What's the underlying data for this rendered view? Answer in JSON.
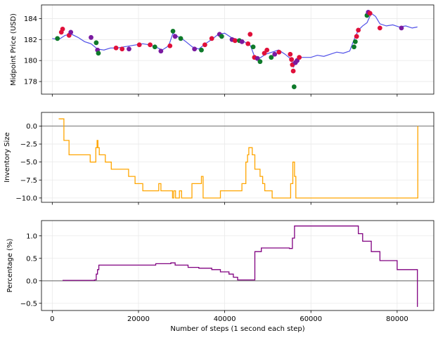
{
  "chart_data": [
    {
      "type": "line",
      "panel": "price",
      "xlabel": "",
      "ylabel": "Midpoint Price (USD)",
      "xlim": [
        -2500,
        88500
      ],
      "ylim": [
        176.8,
        185.3
      ],
      "xticks": [
        0,
        20000,
        40000,
        60000,
        80000
      ],
      "yticks": [
        178,
        180,
        182,
        184
      ],
      "ytick_labels": [
        "178",
        "180",
        "182",
        "184"
      ],
      "grid": true,
      "colors": {
        "line": "#5050e8",
        "buy": "#0e7a2a",
        "sell": "#e0103a",
        "mixed": "#7a1aa0"
      },
      "series": [
        {
          "x": [
            0,
            1500,
            3000,
            4500,
            6000,
            7500,
            9000,
            10500,
            12000,
            13500,
            15000,
            16500,
            18000,
            19500,
            21000,
            22500,
            24000,
            25500,
            27000,
            28000,
            29000,
            30000,
            31000,
            32500,
            34000,
            35500,
            37000,
            38500,
            40000,
            41500,
            43000,
            44500,
            46000,
            47000,
            48000,
            49500,
            51000,
            52500,
            54000,
            55500,
            56000,
            57000,
            58500,
            60000,
            61500,
            63000,
            64500,
            66000,
            67500,
            69000,
            70000,
            71000,
            72000,
            73000,
            74000,
            75000,
            76000,
            77500,
            79000,
            80500,
            82000,
            83500,
            84700
          ],
          "y": [
            182.1,
            182.0,
            182.4,
            182.5,
            182.2,
            181.8,
            181.6,
            181.1,
            181.0,
            181.2,
            181.2,
            181.3,
            181.4,
            181.5,
            181.6,
            181.5,
            181.3,
            181.0,
            181.4,
            182.6,
            182.3,
            182.1,
            181.8,
            181.3,
            181.1,
            181.6,
            182.0,
            182.5,
            182.6,
            182.2,
            182.0,
            181.8,
            181.4,
            180.3,
            180.2,
            180.6,
            180.8,
            181.0,
            180.6,
            180.1,
            179.4,
            180.3,
            180.3,
            180.3,
            180.5,
            180.4,
            180.6,
            180.8,
            180.7,
            180.9,
            182.0,
            182.9,
            183.3,
            183.6,
            184.5,
            184.2,
            183.5,
            183.3,
            183.4,
            183.2,
            183.3,
            183.1,
            183.2
          ]
        }
      ],
      "markers": [
        {
          "x": 1200,
          "y": 182.1,
          "c": "buy"
        },
        {
          "x": 2100,
          "y": 182.7,
          "c": "sell"
        },
        {
          "x": 2400,
          "y": 183.0,
          "c": "sell"
        },
        {
          "x": 3900,
          "y": 182.4,
          "c": "sell"
        },
        {
          "x": 4300,
          "y": 182.7,
          "c": "mixed"
        },
        {
          "x": 9000,
          "y": 182.2,
          "c": "mixed"
        },
        {
          "x": 10200,
          "y": 181.7,
          "c": "buy"
        },
        {
          "x": 10500,
          "y": 181.0,
          "c": "mixed"
        },
        {
          "x": 10700,
          "y": 180.7,
          "c": "buy"
        },
        {
          "x": 14800,
          "y": 181.2,
          "c": "sell"
        },
        {
          "x": 16200,
          "y": 181.1,
          "c": "sell"
        },
        {
          "x": 17800,
          "y": 181.1,
          "c": "mixed"
        },
        {
          "x": 20200,
          "y": 181.5,
          "c": "sell"
        },
        {
          "x": 22700,
          "y": 181.5,
          "c": "sell"
        },
        {
          "x": 23800,
          "y": 181.3,
          "c": "buy"
        },
        {
          "x": 25200,
          "y": 180.9,
          "c": "mixed"
        },
        {
          "x": 27300,
          "y": 181.4,
          "c": "sell"
        },
        {
          "x": 28000,
          "y": 182.8,
          "c": "buy"
        },
        {
          "x": 28500,
          "y": 182.3,
          "c": "mixed"
        },
        {
          "x": 29800,
          "y": 182.1,
          "c": "buy"
        },
        {
          "x": 33000,
          "y": 181.1,
          "c": "mixed"
        },
        {
          "x": 34600,
          "y": 181.0,
          "c": "buy"
        },
        {
          "x": 35400,
          "y": 181.5,
          "c": "sell"
        },
        {
          "x": 37000,
          "y": 182.1,
          "c": "sell"
        },
        {
          "x": 38800,
          "y": 182.5,
          "c": "mixed"
        },
        {
          "x": 39300,
          "y": 182.3,
          "c": "buy"
        },
        {
          "x": 41700,
          "y": 182.0,
          "c": "mixed"
        },
        {
          "x": 42400,
          "y": 181.9,
          "c": "sell"
        },
        {
          "x": 43400,
          "y": 181.9,
          "c": "buy"
        },
        {
          "x": 44000,
          "y": 181.8,
          "c": "mixed"
        },
        {
          "x": 45400,
          "y": 181.6,
          "c": "sell"
        },
        {
          "x": 45900,
          "y": 182.5,
          "c": "sell"
        },
        {
          "x": 46600,
          "y": 181.3,
          "c": "buy"
        },
        {
          "x": 46900,
          "y": 180.3,
          "c": "sell"
        },
        {
          "x": 47600,
          "y": 180.2,
          "c": "mixed"
        },
        {
          "x": 48200,
          "y": 179.9,
          "c": "buy"
        },
        {
          "x": 49200,
          "y": 180.7,
          "c": "sell"
        },
        {
          "x": 49800,
          "y": 181.0,
          "c": "sell"
        },
        {
          "x": 50800,
          "y": 180.3,
          "c": "buy"
        },
        {
          "x": 51600,
          "y": 180.6,
          "c": "mixed"
        },
        {
          "x": 52600,
          "y": 180.8,
          "c": "sell"
        },
        {
          "x": 55200,
          "y": 180.6,
          "c": "sell"
        },
        {
          "x": 55500,
          "y": 180.1,
          "c": "sell"
        },
        {
          "x": 55700,
          "y": 179.6,
          "c": "sell"
        },
        {
          "x": 55900,
          "y": 179.0,
          "c": "sell"
        },
        {
          "x": 56100,
          "y": 177.5,
          "c": "buy"
        },
        {
          "x": 56400,
          "y": 179.8,
          "c": "mixed"
        },
        {
          "x": 56800,
          "y": 180.0,
          "c": "mixed"
        },
        {
          "x": 57300,
          "y": 180.3,
          "c": "sell"
        },
        {
          "x": 70000,
          "y": 181.3,
          "c": "buy"
        },
        {
          "x": 70300,
          "y": 181.8,
          "c": "buy"
        },
        {
          "x": 70600,
          "y": 182.3,
          "c": "sell"
        },
        {
          "x": 71000,
          "y": 182.9,
          "c": "sell"
        },
        {
          "x": 73000,
          "y": 184.3,
          "c": "buy"
        },
        {
          "x": 73300,
          "y": 184.6,
          "c": "mixed"
        },
        {
          "x": 73700,
          "y": 184.5,
          "c": "sell"
        },
        {
          "x": 76000,
          "y": 183.1,
          "c": "sell"
        },
        {
          "x": 81000,
          "y": 183.1,
          "c": "mixed"
        }
      ]
    },
    {
      "type": "line",
      "panel": "inventory",
      "xlabel": "",
      "ylabel": "Inventory Size",
      "xlim": [
        -2500,
        88500
      ],
      "ylim": [
        -10.6,
        1.9
      ],
      "xticks": [
        0,
        20000,
        40000,
        60000,
        80000
      ],
      "yticks": [
        0,
        -2.5,
        -5,
        -7.5,
        -10
      ],
      "ytick_labels": [
        "0.0",
        "−2.5",
        "−5.0",
        "−7.5",
        "−10.0"
      ],
      "grid": true,
      "zero_line": true,
      "colors": {
        "line": "#ffa500",
        "zero": "#808080"
      },
      "series": [
        {
          "x": [
            1500,
            2400,
            2700,
            3900,
            8800,
            10100,
            10400,
            10600,
            10900,
            12300,
            13700,
            17700,
            19200,
            21000,
            22000,
            24400,
            24700,
            25200,
            26700,
            27900,
            28200,
            28600,
            29500,
            30000,
            31800,
            32400,
            34600,
            35000,
            36500,
            38700,
            39000,
            43800,
            44000,
            44900,
            45300,
            45600,
            46000,
            46400,
            47000,
            48200,
            48800,
            49300,
            51000,
            54500,
            55300,
            55800,
            56200,
            56500,
            57100,
            59000,
            70000,
            74000,
            84800,
            84800
          ],
          "y": [
            1,
            1,
            -2,
            -4,
            -5,
            -3,
            -2,
            -3,
            -4,
            -5,
            -6,
            -7,
            -8,
            -9,
            -9,
            -9,
            -8,
            -9,
            -9,
            -10,
            -9,
            -10,
            -9,
            -10,
            -10,
            -8,
            -7,
            -10,
            -10,
            -10,
            -9,
            -9,
            -8,
            -5,
            -4,
            -3,
            -3,
            -4,
            -6,
            -7,
            -8,
            -9,
            -10,
            -10,
            -8,
            -5,
            -7,
            -10,
            -10,
            -10,
            -10,
            -10,
            -10,
            0
          ]
        }
      ]
    },
    {
      "type": "line",
      "panel": "percentage",
      "xlabel": "Number of steps (1 second each step)",
      "ylabel": "Percentage (%)",
      "xlim": [
        -2500,
        88500
      ],
      "ylim": [
        -0.66,
        1.34
      ],
      "xticks": [
        0,
        20000,
        40000,
        60000,
        80000
      ],
      "xtick_labels": [
        "0",
        "20000",
        "40000",
        "60000",
        "80000"
      ],
      "yticks": [
        1.0,
        0.5,
        0.0,
        -0.5
      ],
      "ytick_labels": [
        "1.0",
        "0.5",
        "0.0",
        "−0.5"
      ],
      "grid": true,
      "zero_line": true,
      "colors": {
        "line": "#800080",
        "zero": "#808080"
      },
      "series": [
        {
          "x": [
            2400,
            9800,
            10200,
            10500,
            10800,
            22000,
            24000,
            27500,
            28500,
            31500,
            34000,
            37000,
            39000,
            41000,
            42000,
            43000,
            46000,
            47000,
            48500,
            55000,
            55700,
            56200,
            70000,
            71000,
            72000,
            74000,
            76000,
            80000,
            84700,
            84700
          ],
          "y": [
            0.01,
            0.02,
            0.15,
            0.25,
            0.35,
            0.35,
            0.38,
            0.4,
            0.35,
            0.3,
            0.28,
            0.25,
            0.2,
            0.15,
            0.08,
            0.02,
            0.02,
            0.65,
            0.73,
            0.72,
            0.95,
            1.22,
            1.22,
            1.05,
            0.88,
            0.65,
            0.45,
            0.25,
            0.25,
            -0.58
          ]
        }
      ]
    }
  ]
}
